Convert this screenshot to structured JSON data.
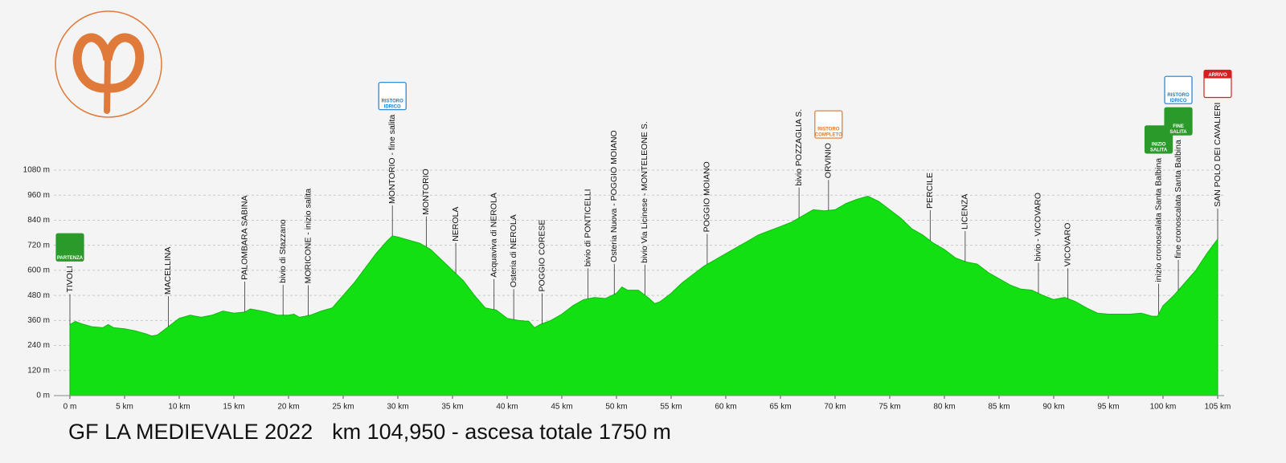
{
  "chart_data": {
    "type": "area",
    "title": "GF LA MEDIEVALE 2022",
    "subtitle": "km 104,950 - ascesa totale 1750 m",
    "color": "#13e013",
    "grid": true,
    "xlim": [
      0,
      105
    ],
    "ylim": [
      0,
      1080
    ],
    "xticks": [
      {
        "value": 0,
        "label": "0 m"
      },
      {
        "value": 5,
        "label": "5 km"
      },
      {
        "value": 10,
        "label": "10 km"
      },
      {
        "value": 15,
        "label": "15 km"
      },
      {
        "value": 20,
        "label": "20 km"
      },
      {
        "value": 25,
        "label": "25 km"
      },
      {
        "value": 30,
        "label": "30 km"
      },
      {
        "value": 35,
        "label": "35 km"
      },
      {
        "value": 40,
        "label": "40 km"
      },
      {
        "value": 45,
        "label": "45 km"
      },
      {
        "value": 50,
        "label": "50 km"
      },
      {
        "value": 55,
        "label": "55 km"
      },
      {
        "value": 60,
        "label": "60 km"
      },
      {
        "value": 65,
        "label": "65 km"
      },
      {
        "value": 70,
        "label": "70 km"
      },
      {
        "value": 75,
        "label": "75 km"
      },
      {
        "value": 80,
        "label": "80 km"
      },
      {
        "value": 85,
        "label": "85 km"
      },
      {
        "value": 90,
        "label": "90 km"
      },
      {
        "value": 95,
        "label": "95 km"
      },
      {
        "value": 100,
        "label": "100 km"
      },
      {
        "value": 105,
        "label": "105 km"
      }
    ],
    "yticks": [
      {
        "value": 0,
        "label": "0 m"
      },
      {
        "value": 120,
        "label": "120 m"
      },
      {
        "value": 240,
        "label": "240 m"
      },
      {
        "value": 360,
        "label": "360 m"
      },
      {
        "value": 480,
        "label": "480 m"
      },
      {
        "value": 600,
        "label": "600 m"
      },
      {
        "value": 720,
        "label": "720 m"
      },
      {
        "value": 840,
        "label": "840 m"
      },
      {
        "value": 960,
        "label": "960 m"
      },
      {
        "value": 1080,
        "label": "1080 m"
      }
    ],
    "x": [
      0,
      0.5,
      1,
      2,
      3,
      3.5,
      4,
      5,
      6,
      7,
      7.5,
      8,
      9,
      10,
      11,
      12,
      13,
      14,
      15,
      16,
      16.5,
      17,
      18,
      19,
      20,
      20.5,
      21,
      22,
      23,
      24,
      25,
      26,
      27,
      28,
      29,
      29.5,
      30,
      31,
      32,
      33,
      34,
      35,
      36,
      37,
      38,
      39,
      40,
      41,
      42,
      42.5,
      43,
      44,
      45,
      46,
      47,
      48,
      49,
      50,
      50.5,
      51,
      52,
      53,
      53.5,
      54,
      55,
      56,
      57,
      58,
      59,
      60,
      61,
      62,
      63,
      64,
      65,
      66,
      67,
      68,
      69,
      70,
      71,
      72,
      73,
      74,
      75,
      76,
      77,
      78,
      79,
      80,
      81,
      82,
      83,
      84,
      85,
      86,
      87,
      88,
      89,
      90,
      91,
      92,
      93,
      94,
      95,
      96,
      97,
      98,
      99,
      99.5,
      100,
      101,
      102,
      103,
      104,
      105
    ],
    "values": [
      340,
      355,
      345,
      330,
      325,
      340,
      325,
      320,
      310,
      295,
      285,
      290,
      330,
      370,
      385,
      375,
      385,
      405,
      395,
      400,
      415,
      410,
      400,
      385,
      385,
      390,
      375,
      385,
      405,
      420,
      480,
      540,
      610,
      680,
      740,
      765,
      760,
      745,
      730,
      700,
      650,
      600,
      550,
      480,
      420,
      410,
      370,
      360,
      355,
      325,
      340,
      360,
      390,
      430,
      460,
      470,
      465,
      490,
      520,
      505,
      505,
      465,
      440,
      450,
      490,
      540,
      580,
      620,
      650,
      680,
      710,
      740,
      770,
      790,
      810,
      830,
      860,
      890,
      885,
      890,
      920,
      940,
      955,
      930,
      890,
      850,
      800,
      770,
      730,
      700,
      660,
      640,
      630,
      590,
      560,
      530,
      510,
      505,
      480,
      460,
      470,
      450,
      420,
      395,
      390,
      390,
      390,
      395,
      380,
      380,
      430,
      480,
      540,
      600,
      680,
      750
    ],
    "waypoints": [
      {
        "label": "TIVOLI",
        "km": 0,
        "icons": [
          {
            "label": [
              "PARTENZA"
            ],
            "color": "#2a9a2a"
          }
        ]
      },
      {
        "label": "MACELLINA",
        "km": 9
      },
      {
        "label": "PALOMBARA SABINA",
        "km": 16
      },
      {
        "label": "bivio di Stazzano",
        "km": 19.5
      },
      {
        "label": "MORICONE   -   inizio salita",
        "km": 21.8
      },
      {
        "label": "MONTORIO - fine salita",
        "km": 29.5,
        "icons": [
          {
            "label": [
              "RISTORO",
              "IDRICO"
            ],
            "color": "#1a7fd0"
          }
        ]
      },
      {
        "label": "MONTORIO",
        "km": 32.6
      },
      {
        "label": "NEROLA",
        "km": 35.3
      },
      {
        "label": "Acquaviva di NEROLA",
        "km": 38.8
      },
      {
        "label": "Osteria di NEROLA",
        "km": 40.6
      },
      {
        "label": "POGGIO CORESE",
        "km": 43.2
      },
      {
        "label": "bivio di PONTICELLI",
        "km": 47.4
      },
      {
        "label": "Osteria Nuova - POGGIO MOIANO",
        "km": 49.8
      },
      {
        "label": "bivio Via Licinese - MONTELEONE S.",
        "km": 52.6
      },
      {
        "label": "POGGIO MOIANO",
        "km": 58.3
      },
      {
        "label": "bivio POZZAGLIA S.",
        "km": 66.7
      },
      {
        "label": "ORVINIO",
        "km": 69.4,
        "icons": [
          {
            "label": [
              "RISTORO",
              "COMPLETO"
            ],
            "color": "#e0782a"
          }
        ]
      },
      {
        "label": "PERCILE",
        "km": 78.7
      },
      {
        "label": "LICENZA",
        "km": 81.9
      },
      {
        "label": "bivio - VICOVARO",
        "km": 88.6
      },
      {
        "label": "VICOVARO",
        "km": 91.3
      },
      {
        "label": "inizio cronoscalata Santa Balbina",
        "km": 99.6,
        "icons": [
          {
            "label": [
              "INIZIO",
              "SALITA"
            ],
            "color": "#2a9a2a"
          }
        ]
      },
      {
        "label": "fine cronoscalata Santa Balbina",
        "km": 101.4,
        "icons": [
          {
            "label": [
              "FINE",
              "SALITA"
            ],
            "color": "#2a9a2a"
          },
          {
            "label": [
              "RISTORO",
              "IDRICO"
            ],
            "color": "#1a7fd0"
          }
        ]
      },
      {
        "label": "SAN POLO DEI CAVALIERI",
        "km": 105,
        "icons": [
          {
            "label": [
              "ARRIVO"
            ],
            "color": "#d81e1e"
          }
        ]
      }
    ]
  }
}
